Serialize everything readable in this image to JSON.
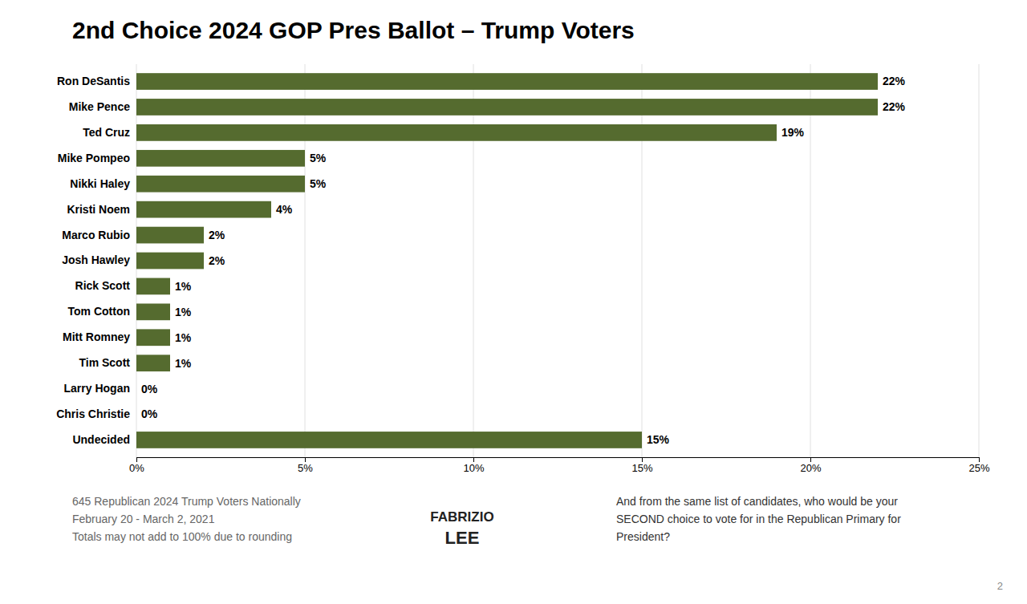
{
  "chart_data": {
    "type": "bar",
    "orientation": "horizontal",
    "title": "2nd Choice 2024 GOP Pres Ballot – Trump Voters",
    "categories": [
      "Ron DeSantis",
      "Mike Pence",
      "Ted Cruz",
      "Mike Pompeo",
      "Nikki Haley",
      "Kristi Noem",
      "Marco Rubio",
      "Josh Hawley",
      "Rick Scott",
      "Tom Cotton",
      "Mitt Romney",
      "Tim Scott",
      "Larry Hogan",
      "Chris Christie",
      "Undecided"
    ],
    "values": [
      22,
      22,
      19,
      5,
      5,
      4,
      2,
      2,
      1,
      1,
      1,
      1,
      0,
      0,
      15
    ],
    "value_labels": [
      "22%",
      "22%",
      "19%",
      "5%",
      "5%",
      "4%",
      "2%",
      "2%",
      "1%",
      "1%",
      "1%",
      "1%",
      "0%",
      "0%",
      "15%"
    ],
    "data_labels": true,
    "color": "#556b2f",
    "xlim": [
      0,
      25
    ],
    "xticks": [
      {
        "value": 0,
        "label": "0%"
      },
      {
        "value": 5,
        "label": "5%"
      },
      {
        "value": 10,
        "label": "10%"
      },
      {
        "value": 15,
        "label": "15%"
      },
      {
        "value": 20,
        "label": "20%"
      },
      {
        "value": 25,
        "label": "25%"
      }
    ],
    "grid": true,
    "annotations": [
      "645 Republican 2024 Trump Voters Nationally",
      "February 20 - March 2, 2021",
      "Totals may not add to 100% due to rounding",
      "And from the same list of candidates, who would be your\nSECOND choice to vote for in the Republican Primary for\nPresident?",
      "FABRIZIO",
      "LEE",
      "2"
    ]
  }
}
